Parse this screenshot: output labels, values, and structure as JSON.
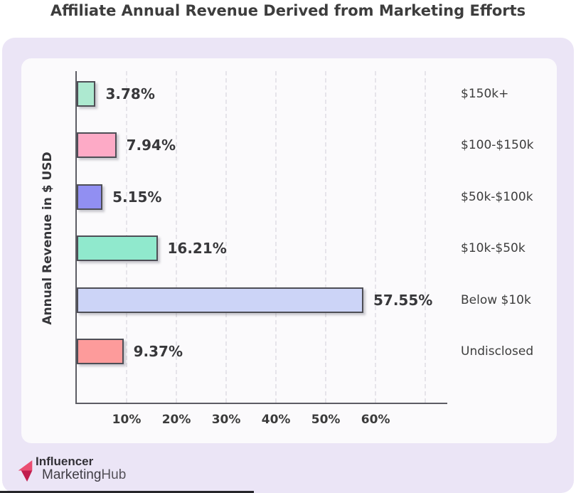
{
  "page": {
    "title": "Affiliate Annual Revenue Derived from Marketing Efforts"
  },
  "chart_data": {
    "type": "bar",
    "orientation": "horizontal",
    "title": "Affiliate Annual Revenue Derived from Marketing Efforts",
    "ylabel": "Annual Revenue in $ USD",
    "xlabel": "",
    "categories": [
      "$150k+",
      "$100-$150k",
      "$50k-$100k",
      "$10k-$50k",
      "Below $10k",
      "Undisclosed"
    ],
    "values": [
      3.78,
      7.94,
      5.15,
      16.21,
      57.55,
      9.37
    ],
    "value_labels": [
      "3.78%",
      "7.94%",
      "5.15%",
      "16.21%",
      "57.55%",
      "9.37%"
    ],
    "bar_colors": [
      "#ade9d0",
      "#fdaac6",
      "#918ff2",
      "#90e9cd",
      "#ccd4f7",
      "#fd9b9b"
    ],
    "x_ticks": [
      "10%",
      "20%",
      "30%",
      "40%",
      "50%",
      "60%"
    ],
    "x_tick_values": [
      10,
      20,
      30,
      40,
      50,
      60
    ],
    "xlim": [
      0,
      74.4
    ],
    "grid": true,
    "grid_style": "vertical-dashed",
    "legend": false,
    "category_label_position": "right"
  },
  "branding": {
    "line1": "Influencer",
    "line2_part1": "Marketing",
    "line2_part2": "Hub",
    "logo_color_light": "#ea4d71",
    "logo_color_dark": "#c11e4e"
  },
  "colors": {
    "page_bg": "#ffffff",
    "panel_bg": "#ebe5f6",
    "card_bg": "#fbfafc",
    "axis": "#5c5c64",
    "gridline": "#e6e4ea",
    "text": "#3d3d3d",
    "bar_border": "#4e4e56"
  }
}
